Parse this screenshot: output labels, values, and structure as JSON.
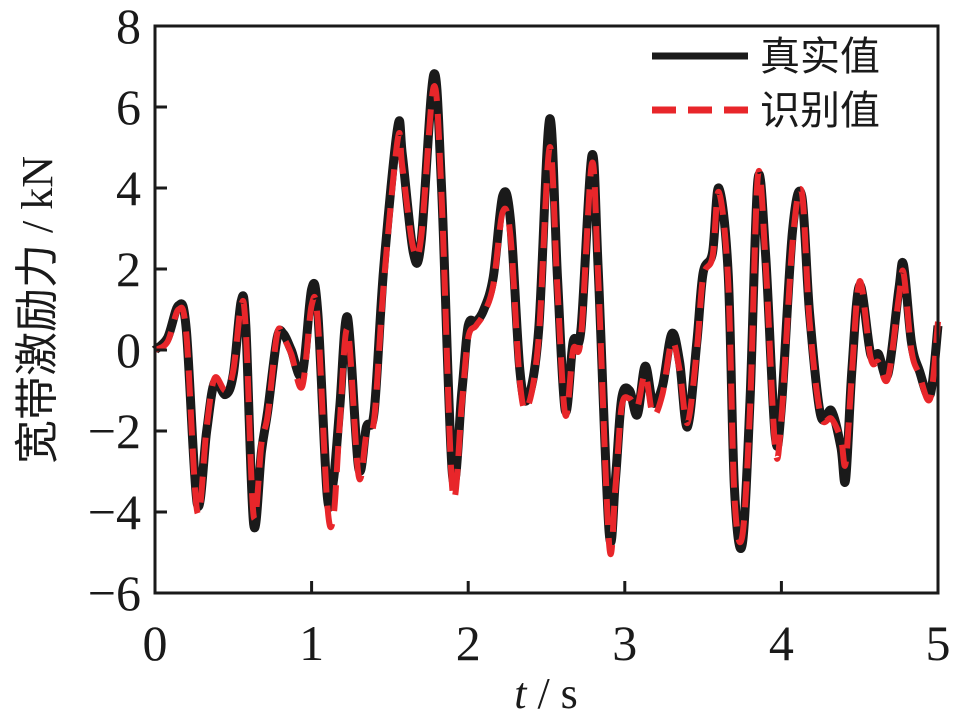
{
  "chart_data": {
    "type": "line",
    "xlabel_italic": "t",
    "xlabel_rest": " / s",
    "ylabel": "宽带激励力 / kN",
    "xlim": [
      0,
      5
    ],
    "ylim": [
      -6,
      8
    ],
    "x_ticks": [
      0,
      1,
      2,
      3,
      4,
      5
    ],
    "x_tick_labels": [
      "0",
      "1",
      "2",
      "3",
      "4",
      "5"
    ],
    "y_ticks": [
      -6,
      -4,
      -2,
      0,
      2,
      4,
      6,
      8
    ],
    "y_tick_labels": [
      "−6",
      "−4",
      "−2",
      "0",
      "2",
      "4",
      "6",
      "8"
    ],
    "grid": false,
    "legend_position": "top-right",
    "colors": {
      "true": "#1a1a1a",
      "identified": "#e8262a"
    },
    "series": [
      {
        "name": "真实值",
        "style": "solid",
        "points": [
          [
            0.0,
            0.0
          ],
          [
            0.08,
            0.3
          ],
          [
            0.15,
            1.1
          ],
          [
            0.2,
            0.5
          ],
          [
            0.27,
            -3.8
          ],
          [
            0.33,
            -2.0
          ],
          [
            0.38,
            -0.8
          ],
          [
            0.45,
            -1.1
          ],
          [
            0.5,
            -0.6
          ],
          [
            0.55,
            1.2
          ],
          [
            0.58,
            0.6
          ],
          [
            0.63,
            -4.3
          ],
          [
            0.68,
            -2.5
          ],
          [
            0.72,
            -1.5
          ],
          [
            0.78,
            0.3
          ],
          [
            0.82,
            0.4
          ],
          [
            0.87,
            0.0
          ],
          [
            0.94,
            -0.6
          ],
          [
            1.0,
            1.5
          ],
          [
            1.04,
            0.9
          ],
          [
            1.1,
            -3.6
          ],
          [
            1.14,
            -3.2
          ],
          [
            1.18,
            -1.4
          ],
          [
            1.23,
            0.8
          ],
          [
            1.3,
            -2.9
          ],
          [
            1.35,
            -1.9
          ],
          [
            1.4,
            -1.5
          ],
          [
            1.46,
            2.0
          ],
          [
            1.55,
            5.5
          ],
          [
            1.58,
            4.8
          ],
          [
            1.65,
            2.4
          ],
          [
            1.7,
            2.7
          ],
          [
            1.78,
            6.8
          ],
          [
            1.83,
            4.0
          ],
          [
            1.9,
            -3.1
          ],
          [
            1.96,
            -1.0
          ],
          [
            2.0,
            0.6
          ],
          [
            2.05,
            0.7
          ],
          [
            2.1,
            1.0
          ],
          [
            2.16,
            1.8
          ],
          [
            2.22,
            3.8
          ],
          [
            2.27,
            3.2
          ],
          [
            2.33,
            -0.5
          ],
          [
            2.38,
            -1.2
          ],
          [
            2.45,
            0.5
          ],
          [
            2.52,
            5.7
          ],
          [
            2.57,
            1.8
          ],
          [
            2.62,
            -1.5
          ],
          [
            2.67,
            0.2
          ],
          [
            2.72,
            0.5
          ],
          [
            2.79,
            4.8
          ],
          [
            2.83,
            2.0
          ],
          [
            2.9,
            -4.5
          ],
          [
            2.94,
            -3.2
          ],
          [
            2.98,
            -1.2
          ],
          [
            3.03,
            -1.0
          ],
          [
            3.08,
            -1.6
          ],
          [
            3.13,
            -0.4
          ],
          [
            3.18,
            -1.3
          ],
          [
            3.24,
            -0.9
          ],
          [
            3.3,
            0.4
          ],
          [
            3.35,
            -0.3
          ],
          [
            3.4,
            -1.9
          ],
          [
            3.46,
            0.2
          ],
          [
            3.5,
            1.9
          ],
          [
            3.56,
            2.4
          ],
          [
            3.6,
            4.0
          ],
          [
            3.66,
            1.9
          ],
          [
            3.7,
            -3.4
          ],
          [
            3.75,
            -4.8
          ],
          [
            3.8,
            -1.2
          ],
          [
            3.85,
            4.2
          ],
          [
            3.9,
            2.3
          ],
          [
            3.96,
            -2.1
          ],
          [
            4.0,
            -1.4
          ],
          [
            4.07,
            2.9
          ],
          [
            4.13,
            3.8
          ],
          [
            4.18,
            0.9
          ],
          [
            4.25,
            -1.6
          ],
          [
            4.32,
            -1.5
          ],
          [
            4.38,
            -2.4
          ],
          [
            4.41,
            -3.2
          ],
          [
            4.45,
            -0.5
          ],
          [
            4.5,
            1.6
          ],
          [
            4.57,
            -0.1
          ],
          [
            4.62,
            -0.1
          ],
          [
            4.68,
            -0.6
          ],
          [
            4.75,
            1.5
          ],
          [
            4.78,
            2.1
          ],
          [
            4.83,
            0.2
          ],
          [
            4.88,
            -0.5
          ],
          [
            4.95,
            -1.1
          ],
          [
            5.0,
            0.6
          ]
        ]
      },
      {
        "name": "识别值",
        "style": "dashed",
        "points": [
          [
            0.0,
            0.0
          ],
          [
            0.08,
            0.2
          ],
          [
            0.15,
            1.0
          ],
          [
            0.2,
            0.4
          ],
          [
            0.27,
            -4.0
          ],
          [
            0.33,
            -1.9
          ],
          [
            0.38,
            -0.7
          ],
          [
            0.45,
            -1.0
          ],
          [
            0.5,
            -0.5
          ],
          [
            0.55,
            1.1
          ],
          [
            0.58,
            0.5
          ],
          [
            0.63,
            -4.1
          ],
          [
            0.68,
            -2.3
          ],
          [
            0.72,
            -1.6
          ],
          [
            0.78,
            0.4
          ],
          [
            0.82,
            0.3
          ],
          [
            0.87,
            -0.1
          ],
          [
            0.94,
            -0.9
          ],
          [
            1.0,
            1.1
          ],
          [
            1.04,
            0.7
          ],
          [
            1.1,
            -3.8
          ],
          [
            1.14,
            -4.1
          ],
          [
            1.18,
            -1.8
          ],
          [
            1.23,
            0.5
          ],
          [
            1.3,
            -3.1
          ],
          [
            1.35,
            -2.1
          ],
          [
            1.4,
            -1.7
          ],
          [
            1.46,
            1.6
          ],
          [
            1.55,
            5.2
          ],
          [
            1.58,
            4.5
          ],
          [
            1.65,
            2.5
          ],
          [
            1.7,
            2.8
          ],
          [
            1.78,
            6.5
          ],
          [
            1.83,
            3.8
          ],
          [
            1.9,
            -3.5
          ],
          [
            1.96,
            -1.3
          ],
          [
            2.0,
            0.3
          ],
          [
            2.05,
            0.6
          ],
          [
            2.1,
            0.9
          ],
          [
            2.16,
            1.6
          ],
          [
            2.22,
            3.4
          ],
          [
            2.27,
            2.8
          ],
          [
            2.33,
            -0.8
          ],
          [
            2.38,
            -1.4
          ],
          [
            2.45,
            0.3
          ],
          [
            2.52,
            5.0
          ],
          [
            2.57,
            1.5
          ],
          [
            2.62,
            -1.6
          ],
          [
            2.67,
            0.0
          ],
          [
            2.72,
            0.3
          ],
          [
            2.79,
            4.6
          ],
          [
            2.83,
            1.8
          ],
          [
            2.9,
            -4.8
          ],
          [
            2.94,
            -3.4
          ],
          [
            2.98,
            -1.4
          ],
          [
            3.03,
            -1.2
          ],
          [
            3.08,
            -1.4
          ],
          [
            3.13,
            -0.6
          ],
          [
            3.18,
            -1.6
          ],
          [
            3.24,
            -1.1
          ],
          [
            3.3,
            0.2
          ],
          [
            3.35,
            -0.5
          ],
          [
            3.4,
            -1.8
          ],
          [
            3.46,
            0.0
          ],
          [
            3.5,
            1.8
          ],
          [
            3.56,
            2.3
          ],
          [
            3.6,
            3.9
          ],
          [
            3.66,
            1.7
          ],
          [
            3.7,
            -3.6
          ],
          [
            3.75,
            -4.6
          ],
          [
            3.8,
            -1.4
          ],
          [
            3.85,
            4.3
          ],
          [
            3.9,
            2.1
          ],
          [
            3.96,
            -2.4
          ],
          [
            4.0,
            -1.7
          ],
          [
            4.07,
            2.6
          ],
          [
            4.13,
            3.9
          ],
          [
            4.18,
            0.7
          ],
          [
            4.25,
            -1.6
          ],
          [
            4.32,
            -1.7
          ],
          [
            4.38,
            -2.2
          ],
          [
            4.41,
            -2.8
          ],
          [
            4.45,
            -0.6
          ],
          [
            4.5,
            1.7
          ],
          [
            4.57,
            -0.2
          ],
          [
            4.62,
            -0.3
          ],
          [
            4.68,
            -0.7
          ],
          [
            4.75,
            1.3
          ],
          [
            4.78,
            1.9
          ],
          [
            4.83,
            0.0
          ],
          [
            4.88,
            -0.6
          ],
          [
            4.95,
            -1.2
          ],
          [
            5.0,
            0.7
          ]
        ]
      }
    ]
  }
}
